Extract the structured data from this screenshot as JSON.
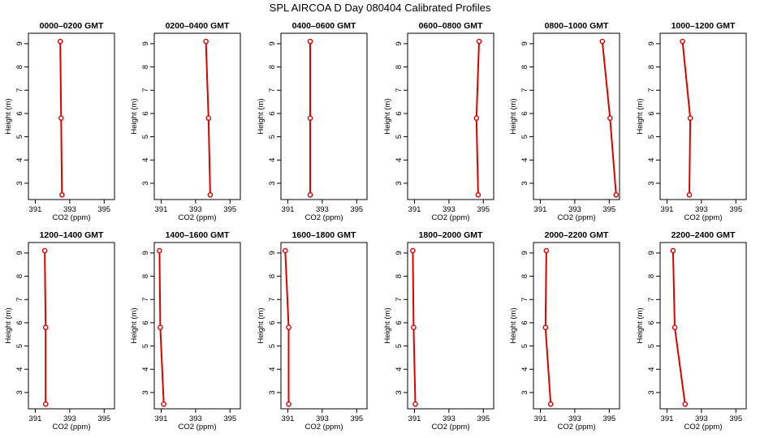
{
  "title": "SPL AIRCOA D  Day 080404  Calibrated Profiles",
  "colors": {
    "profile": "#dd0000",
    "axis": "#000000",
    "background": "#ffffff"
  },
  "chart_data": [
    {
      "type": "line",
      "title": "0000–0200 GMT",
      "xlabel": "CO2 (ppm)",
      "ylabel": "Height (m)",
      "xlim": [
        390.6,
        395.6
      ],
      "ylim": [
        2.3,
        9.45
      ],
      "x_ticks": [
        391,
        393,
        395
      ],
      "y_ticks": [
        3,
        4,
        5,
        6,
        7,
        8,
        9
      ],
      "grid": false,
      "series": [
        {
          "x": [
            392.45,
            392.5,
            392.55
          ],
          "y": [
            9.1,
            5.8,
            2.5
          ]
        }
      ]
    },
    {
      "type": "line",
      "title": "0200–0400 GMT",
      "xlabel": "CO2 (ppm)",
      "ylabel": "Height (m)",
      "xlim": [
        390.6,
        395.6
      ],
      "ylim": [
        2.3,
        9.45
      ],
      "x_ticks": [
        391,
        393,
        395
      ],
      "y_ticks": [
        3,
        4,
        5,
        6,
        7,
        8,
        9
      ],
      "grid": false,
      "series": [
        {
          "x": [
            393.6,
            393.75,
            393.85
          ],
          "y": [
            9.1,
            5.8,
            2.5
          ]
        }
      ]
    },
    {
      "type": "line",
      "title": "0400–0600 GMT",
      "xlabel": "CO2 (ppm)",
      "ylabel": "Height (m)",
      "xlim": [
        390.6,
        395.6
      ],
      "ylim": [
        2.3,
        9.45
      ],
      "x_ticks": [
        391,
        393,
        395
      ],
      "y_ticks": [
        3,
        4,
        5,
        6,
        7,
        8,
        9
      ],
      "grid": false,
      "series": [
        {
          "x": [
            392.3,
            392.3,
            392.3
          ],
          "y": [
            9.1,
            5.8,
            2.5
          ]
        }
      ]
    },
    {
      "type": "line",
      "title": "0600–0800 GMT",
      "xlabel": "CO2 (ppm)",
      "ylabel": "Height (m)",
      "xlim": [
        390.6,
        395.6
      ],
      "ylim": [
        2.3,
        9.45
      ],
      "x_ticks": [
        391,
        393,
        395
      ],
      "y_ticks": [
        3,
        4,
        5,
        6,
        7,
        8,
        9
      ],
      "grid": false,
      "series": [
        {
          "x": [
            394.75,
            394.6,
            394.7
          ],
          "y": [
            9.1,
            5.8,
            2.5
          ]
        }
      ]
    },
    {
      "type": "line",
      "title": "0800–1000 GMT",
      "xlabel": "CO2 (ppm)",
      "ylabel": "Height (m)",
      "xlim": [
        390.6,
        395.6
      ],
      "ylim": [
        2.3,
        9.45
      ],
      "x_ticks": [
        391,
        393,
        395
      ],
      "y_ticks": [
        3,
        4,
        5,
        6,
        7,
        8,
        9
      ],
      "grid": false,
      "series": [
        {
          "x": [
            394.6,
            395.05,
            395.4
          ],
          "y": [
            9.1,
            5.8,
            2.5
          ]
        }
      ]
    },
    {
      "type": "line",
      "title": "1000–1200 GMT",
      "xlabel": "CO2 (ppm)",
      "ylabel": "Height (m)",
      "xlim": [
        390.6,
        395.6
      ],
      "ylim": [
        2.3,
        9.45
      ],
      "x_ticks": [
        391,
        393,
        395
      ],
      "y_ticks": [
        3,
        4,
        5,
        6,
        7,
        8,
        9
      ],
      "grid": false,
      "series": [
        {
          "x": [
            391.9,
            392.35,
            392.3
          ],
          "y": [
            9.1,
            5.8,
            2.5
          ]
        }
      ]
    },
    {
      "type": "line",
      "title": "1200–1400 GMT",
      "xlabel": "CO2 (ppm)",
      "ylabel": "Height (m)",
      "xlim": [
        390.6,
        395.6
      ],
      "ylim": [
        2.3,
        9.45
      ],
      "x_ticks": [
        391,
        393,
        395
      ],
      "y_ticks": [
        3,
        4,
        5,
        6,
        7,
        8,
        9
      ],
      "grid": false,
      "series": [
        {
          "x": [
            391.55,
            391.6,
            391.6
          ],
          "y": [
            9.1,
            5.8,
            2.5
          ]
        }
      ]
    },
    {
      "type": "line",
      "title": "1400–1600 GMT",
      "xlabel": "CO2 (ppm)",
      "ylabel": "Height (m)",
      "xlim": [
        390.6,
        395.6
      ],
      "ylim": [
        2.3,
        9.45
      ],
      "x_ticks": [
        391,
        393,
        395
      ],
      "y_ticks": [
        3,
        4,
        5,
        6,
        7,
        8,
        9
      ],
      "grid": false,
      "series": [
        {
          "x": [
            390.9,
            390.95,
            391.15
          ],
          "y": [
            9.1,
            5.8,
            2.5
          ]
        }
      ]
    },
    {
      "type": "line",
      "title": "1600–1800 GMT",
      "xlabel": "CO2 (ppm)",
      "ylabel": "Height (m)",
      "xlim": [
        390.6,
        395.6
      ],
      "ylim": [
        2.3,
        9.45
      ],
      "x_ticks": [
        391,
        393,
        395
      ],
      "y_ticks": [
        3,
        4,
        5,
        6,
        7,
        8,
        9
      ],
      "grid": false,
      "series": [
        {
          "x": [
            390.85,
            391.05,
            391.05
          ],
          "y": [
            9.1,
            5.8,
            2.5
          ]
        }
      ]
    },
    {
      "type": "line",
      "title": "1800–2000 GMT",
      "xlabel": "CO2 (ppm)",
      "ylabel": "Height (m)",
      "xlim": [
        390.6,
        395.6
      ],
      "ylim": [
        2.3,
        9.45
      ],
      "x_ticks": [
        391,
        393,
        395
      ],
      "y_ticks": [
        3,
        4,
        5,
        6,
        7,
        8,
        9
      ],
      "grid": false,
      "series": [
        {
          "x": [
            390.9,
            390.95,
            391.05
          ],
          "y": [
            9.1,
            5.8,
            2.5
          ]
        }
      ]
    },
    {
      "type": "line",
      "title": "2000–2200 GMT",
      "xlabel": "CO2 (ppm)",
      "ylabel": "Height (m)",
      "xlim": [
        390.6,
        395.6
      ],
      "ylim": [
        2.3,
        9.45
      ],
      "x_ticks": [
        391,
        393,
        395
      ],
      "y_ticks": [
        3,
        4,
        5,
        6,
        7,
        8,
        9
      ],
      "grid": false,
      "series": [
        {
          "x": [
            391.35,
            391.3,
            391.6
          ],
          "y": [
            9.1,
            5.8,
            2.5
          ]
        }
      ]
    },
    {
      "type": "line",
      "title": "2200–2400 GMT",
      "xlabel": "CO2 (ppm)",
      "ylabel": "Height (m)",
      "xlim": [
        390.6,
        395.6
      ],
      "ylim": [
        2.3,
        9.45
      ],
      "x_ticks": [
        391,
        393,
        395
      ],
      "y_ticks": [
        3,
        4,
        5,
        6,
        7,
        8,
        9
      ],
      "grid": false,
      "series": [
        {
          "x": [
            391.35,
            391.45,
            392.05
          ],
          "y": [
            9.1,
            5.8,
            2.5
          ]
        }
      ]
    }
  ]
}
